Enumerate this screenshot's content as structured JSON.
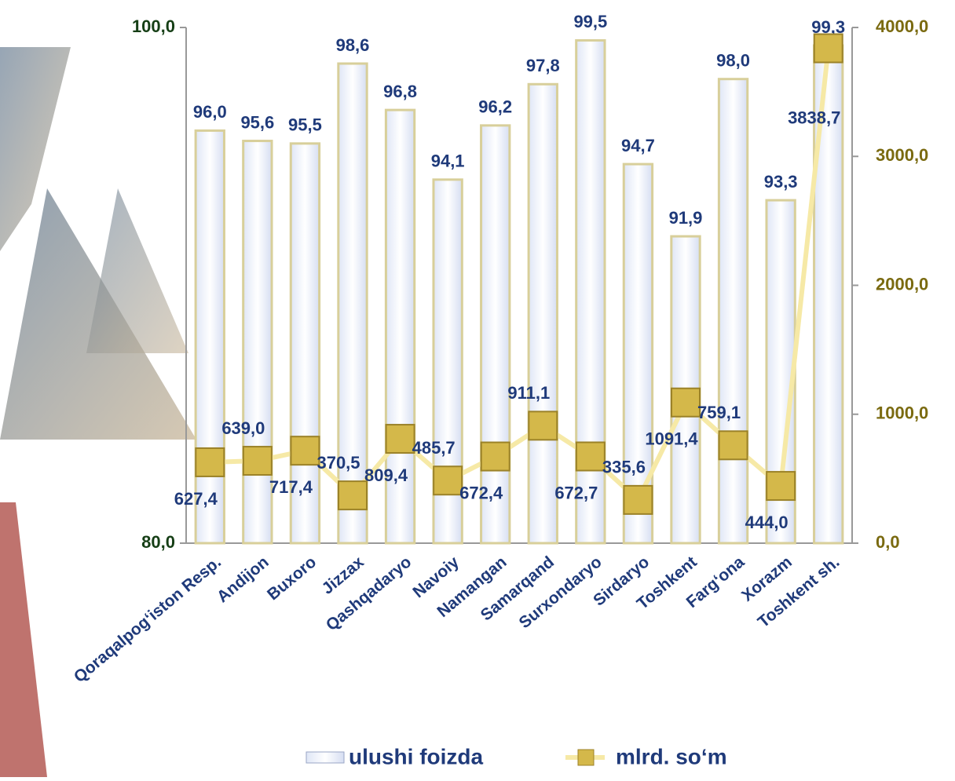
{
  "chart_data": {
    "type": "combo",
    "categories": [
      "Qoraqalpog‘iston Resp.",
      "Andijon",
      "Buxoro",
      "Jizzax",
      "Qashqadaryo",
      "Navoiy",
      "Namangan",
      "Samarqand",
      "Surxondaryo",
      "Sirdaryo",
      "Toshkent",
      "Farg‘ona",
      "Xorazm",
      "Toshkent sh."
    ],
    "series": [
      {
        "name": "ulushi foizda",
        "type": "bar",
        "color": "#eef2fb",
        "values": [
          96.0,
          95.6,
          95.5,
          98.6,
          96.8,
          94.1,
          96.2,
          97.8,
          99.5,
          94.7,
          91.9,
          98.0,
          93.3,
          99.3
        ],
        "value_labels": [
          "96,0",
          "95,6",
          "95,5",
          "98,6",
          "96,8",
          "94,1",
          "96,2",
          "97,8",
          "99,5",
          "94,7",
          "91,9",
          "98,0",
          "93,3",
          "99,3"
        ]
      },
      {
        "name": "mlrd. so‘m",
        "type": "line",
        "axis": "y2",
        "color": "#f6e9a6",
        "marker_color": "#d4b84a",
        "values": [
          627.4,
          639.0,
          717.4,
          370.5,
          809.4,
          485.7,
          672.4,
          911.1,
          672.7,
          335.6,
          1091.4,
          759.1,
          444.0,
          3838.7
        ],
        "value_labels": [
          "627,4",
          "639,0",
          "717,4",
          "370,5",
          "809,4",
          "485,7",
          "672,4",
          "911,1",
          "672,7",
          "335,6",
          "1091,4",
          "759,1",
          "444,0",
          "3838,7"
        ]
      }
    ],
    "ylim": [
      80,
      100
    ],
    "yticks": [
      {
        "value": 80,
        "label": "80,0"
      },
      {
        "value": 100,
        "label": "100,0"
      }
    ],
    "y2lim": [
      0,
      4000
    ],
    "y2ticks": [
      {
        "value": 0,
        "label": "0,0"
      },
      {
        "value": 1000,
        "label": "1000,0"
      },
      {
        "value": 2000,
        "label": "2000,0"
      },
      {
        "value": 3000,
        "label": "3000,0"
      },
      {
        "value": 4000,
        "label": "4000,0"
      }
    ]
  }
}
